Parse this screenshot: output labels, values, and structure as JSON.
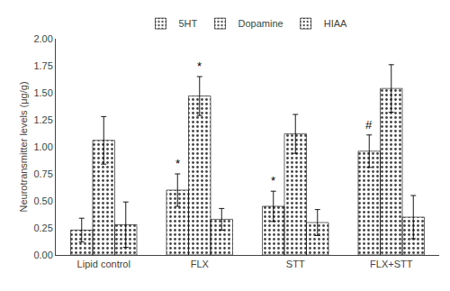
{
  "chart_data": {
    "type": "bar",
    "categories": [
      "Lipid control",
      "FLX",
      "STT",
      "FLX+STT"
    ],
    "series": [
      {
        "name": "5HT",
        "color": "#bebebe",
        "values": [
          0.23,
          0.6,
          0.45,
          0.96
        ],
        "errors": [
          0.11,
          0.15,
          0.14,
          0.15
        ]
      },
      {
        "name": "Dopamine",
        "color": "#888888",
        "values": [
          1.06,
          1.47,
          1.12,
          1.54
        ],
        "errors": [
          0.22,
          0.18,
          0.18,
          0.22
        ]
      },
      {
        "name": "HIAA",
        "color": "#e8e8e8",
        "values": [
          0.28,
          0.33,
          0.3,
          0.35
        ],
        "errors": [
          0.21,
          0.1,
          0.12,
          0.2
        ]
      }
    ],
    "annotations": [
      {
        "category": "FLX",
        "series": "5HT",
        "text": "*"
      },
      {
        "category": "FLX",
        "series": "Dopamine",
        "text": "*"
      },
      {
        "category": "STT",
        "series": "5HT",
        "text": "*"
      },
      {
        "category": "FLX+STT",
        "series": "5HT",
        "text": "#"
      }
    ],
    "ylabel": "Neurotransmitter levels (μg/g)",
    "ylim": [
      0.0,
      2.0
    ],
    "yticks": [
      {
        "value": 0.0,
        "label": "0.00"
      },
      0.25,
      {
        "value": 0.5,
        "label": "0.50"
      },
      0.75,
      {
        "value": 1.0,
        "label": "1.00"
      },
      1.25,
      {
        "value": 1.5,
        "label": "1.50"
      },
      1.75,
      {
        "value": 2.0,
        "label": "2.00"
      }
    ],
    "grid": false,
    "legend": "upper center"
  }
}
